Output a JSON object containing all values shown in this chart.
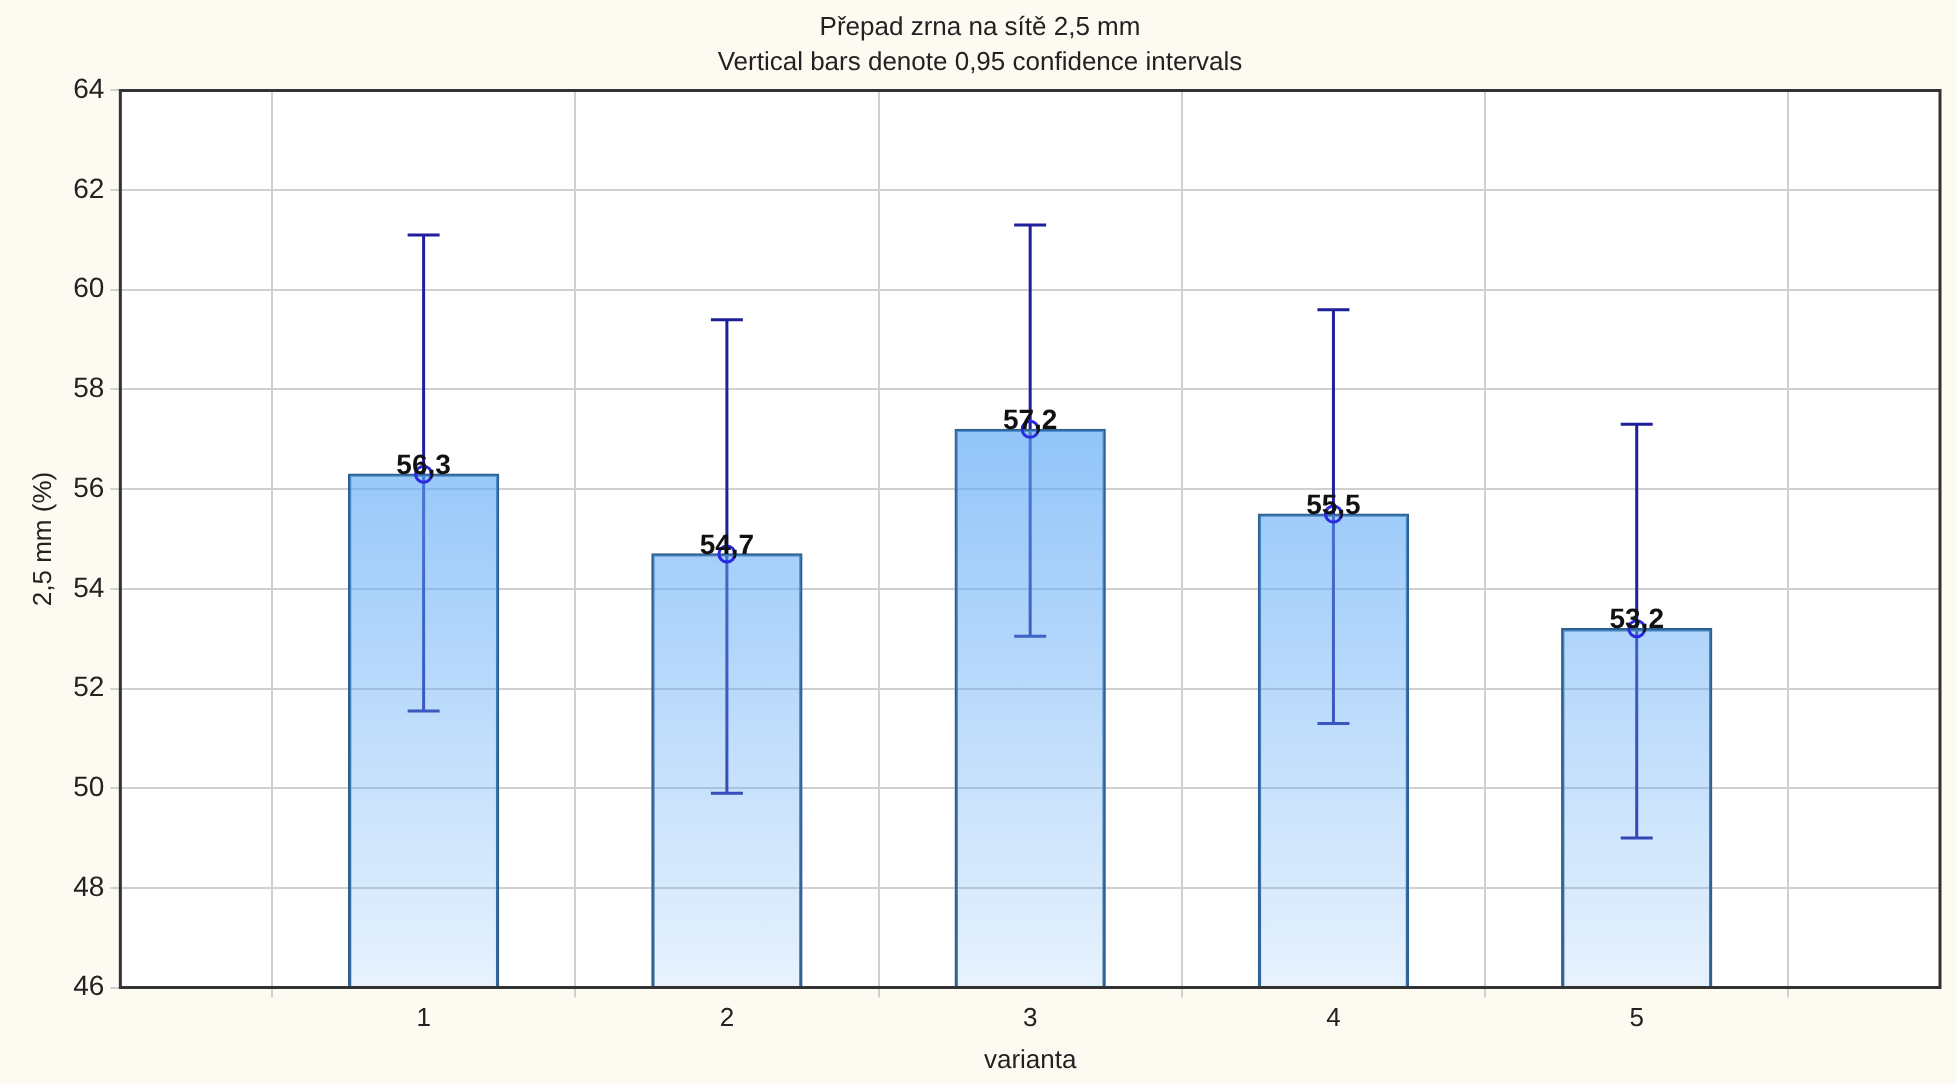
{
  "chart_data": {
    "type": "bar",
    "title": "Přepad zrna na sítě 2,5 mm",
    "subtitle": "Vertical bars denote 0,95 confidence intervals",
    "xlabel": "varianta",
    "ylabel": "2,5 mm (%)",
    "categories": [
      "1",
      "2",
      "3",
      "4",
      "5"
    ],
    "series": [
      {
        "color": "#5ea9f6",
        "values": [
          56.3,
          54.7,
          57.2,
          55.5,
          53.2
        ],
        "value_labels": [
          "56,3",
          "54,7",
          "57,2",
          "55,5",
          "53,2"
        ],
        "errors": [
          [
            51.55,
            61.1
          ],
          [
            49.9,
            59.4
          ],
          [
            53.05,
            61.3
          ],
          [
            51.3,
            59.6
          ],
          [
            49.0,
            57.3
          ]
        ]
      },
      {
        "type": "scatter",
        "color": "#2a2ae0",
        "x": [
          "1",
          "2",
          "3",
          "4",
          "5"
        ],
        "values": [
          56.3,
          54.7,
          57.2,
          55.5,
          53.2
        ]
      }
    ],
    "ylim": [
      46,
      64
    ],
    "yticks": [
      46,
      48,
      50,
      52,
      54,
      56,
      58,
      60,
      62,
      64
    ],
    "grid": true,
    "legend": false,
    "marker": "circle"
  }
}
